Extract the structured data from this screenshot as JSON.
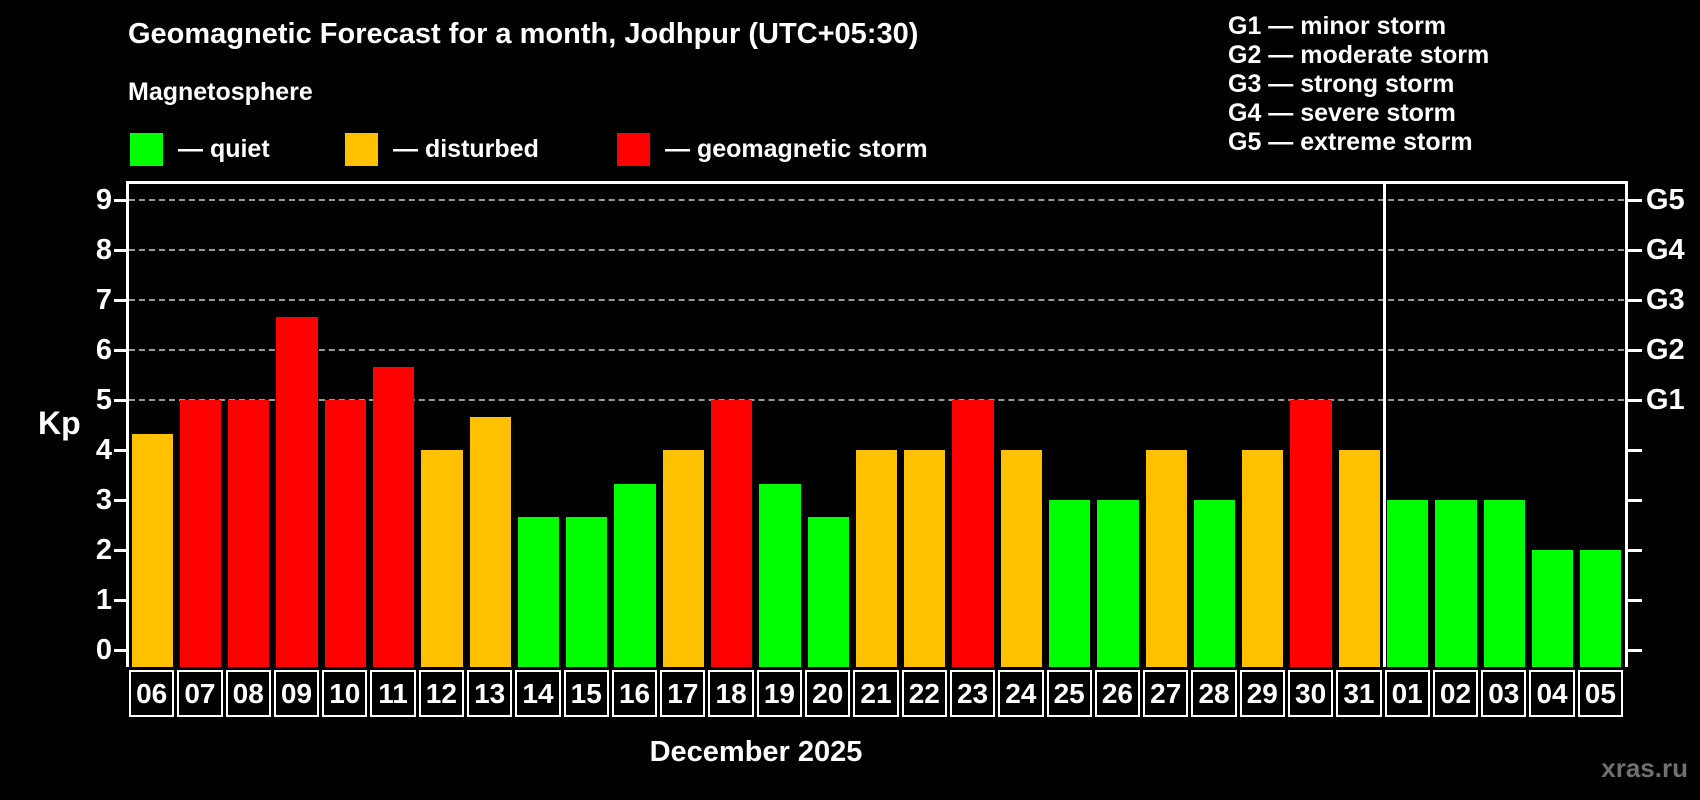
{
  "header": {
    "title": "Geomagnetic Forecast for a month, Jodhpur (UTC+05:30)",
    "subtitle": "Magnetosphere"
  },
  "status_legend": [
    {
      "key": "quiet",
      "label": "— quiet",
      "color": "#00ff00"
    },
    {
      "key": "disturbed",
      "label": "— disturbed",
      "color": "#ffc000"
    },
    {
      "key": "storm",
      "label": "— geomagnetic storm",
      "color": "#ff0000"
    }
  ],
  "g_legend": [
    {
      "code": "G1",
      "label": "G1 — minor storm"
    },
    {
      "code": "G2",
      "label": "G2 — moderate storm"
    },
    {
      "code": "G3",
      "label": "G3 — strong storm"
    },
    {
      "code": "G4",
      "label": "G4 — severe storm"
    },
    {
      "code": "G5",
      "label": "G5 — extreme storm"
    }
  ],
  "watermark": "xras.ru",
  "chart_data": {
    "type": "bar",
    "title": "Geomagnetic Forecast for a month, Jodhpur (UTC+05:30)",
    "ylabel": "Kp",
    "xlabel": "December 2025",
    "month_label": "December 2025",
    "ylim": [
      0,
      9
    ],
    "y_ticks": [
      0,
      1,
      2,
      3,
      4,
      5,
      6,
      7,
      8,
      9
    ],
    "gridlines_at": [
      5,
      6,
      7,
      8,
      9
    ],
    "grid": "horizontal dashed lines at storm levels G1–G5 only",
    "legend_position": "top-left (status colors), top-right (G scale)",
    "right_axis": [
      {
        "kp": 5,
        "label": "G1"
      },
      {
        "kp": 6,
        "label": "G2"
      },
      {
        "kp": 7,
        "label": "G3"
      },
      {
        "kp": 8,
        "label": "G4"
      },
      {
        "kp": 9,
        "label": "G5"
      }
    ],
    "categories": [
      "06",
      "07",
      "08",
      "09",
      "10",
      "11",
      "12",
      "13",
      "14",
      "15",
      "16",
      "17",
      "18",
      "19",
      "20",
      "21",
      "22",
      "23",
      "24",
      "25",
      "26",
      "27",
      "28",
      "29",
      "30",
      "31",
      "01",
      "02",
      "03",
      "04",
      "05"
    ],
    "values": [
      4.33,
      5,
      5,
      6.67,
      5,
      5.67,
      4,
      4.67,
      2.67,
      2.67,
      3.33,
      4,
      5,
      3.33,
      2.67,
      4,
      4,
      5,
      4,
      3,
      3,
      4,
      3,
      4,
      5,
      4,
      3,
      3,
      3,
      2,
      2
    ],
    "statuses": [
      "disturbed",
      "storm",
      "storm",
      "storm",
      "storm",
      "storm",
      "disturbed",
      "disturbed",
      "quiet",
      "quiet",
      "quiet",
      "disturbed",
      "storm",
      "quiet",
      "quiet",
      "disturbed",
      "disturbed",
      "storm",
      "disturbed",
      "quiet",
      "quiet",
      "disturbed",
      "quiet",
      "disturbed",
      "storm",
      "disturbed",
      "quiet",
      "quiet",
      "quiet",
      "quiet",
      "quiet"
    ],
    "colors": {
      "quiet": "#00ff00",
      "disturbed": "#ffc000",
      "storm": "#ff0000"
    },
    "month_separator_after_category": "31"
  }
}
